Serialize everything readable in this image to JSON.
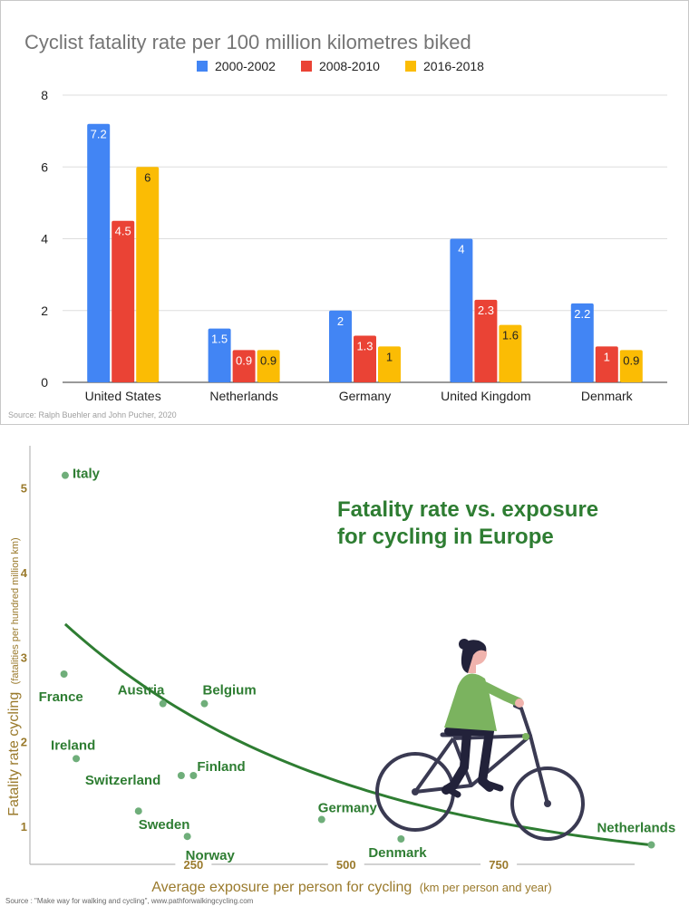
{
  "chart_data": [
    {
      "type": "bar",
      "title": "Cyclist fatality rate per 100 million kilometres biked",
      "categories": [
        "United States",
        "Netherlands",
        "Germany",
        "United Kingdom",
        "Denmark"
      ],
      "series": [
        {
          "name": "2000-2002",
          "color": "#4285F4",
          "label_color": "#ffffff",
          "values": [
            7.2,
            1.5,
            2,
            4,
            2.2
          ],
          "labels": [
            "7.2",
            "1.5",
            "2",
            "4",
            "2.2"
          ]
        },
        {
          "name": "2008-2010",
          "color": "#EA4335",
          "label_color": "#ffffff",
          "values": [
            4.5,
            0.9,
            1.3,
            2.3,
            1
          ],
          "labels": [
            "4.5",
            "0.9",
            "1.3",
            "2.3",
            "1"
          ]
        },
        {
          "name": "2016-2018",
          "color": "#FBBC04",
          "label_color": "#222222",
          "values": [
            6,
            0.9,
            1,
            1.6,
            0.9
          ],
          "labels": [
            "6",
            "0.9",
            "1",
            "1.6",
            "0.9"
          ]
        }
      ],
      "ylim": [
        0,
        8
      ],
      "yticks": [
        0,
        2,
        4,
        6,
        8
      ],
      "ytick_labels": [
        "0",
        "2",
        "4",
        "6",
        "8"
      ],
      "grid": true,
      "legend": "top-center",
      "source": "Source: Ralph Buehler and John Pucher, 2020"
    },
    {
      "type": "scatter",
      "title_lines": [
        "Fatality rate vs. exposure",
        "for cycling in Europe"
      ],
      "xlabel_main": "Average exposure per person for cycling",
      "xlabel_sub": "(km per person and year)",
      "ylabel_main": "Fatality rate cycling",
      "ylabel_sub": "(fatalities per hundred million km)",
      "xlim": [
        0,
        980
      ],
      "ylim": [
        0.55,
        5.5
      ],
      "xticks": [
        250,
        500,
        750
      ],
      "xtick_labels": [
        "250",
        "500",
        "750"
      ],
      "yticks": [
        1,
        2,
        3,
        4,
        5
      ],
      "ytick_labels": [
        "1",
        "2",
        "3",
        "4",
        "5"
      ],
      "points": [
        {
          "label": "Italy",
          "x": 40,
          "y": 5.15
        },
        {
          "label": "France",
          "x": 38,
          "y": 2.8
        },
        {
          "label": "Austria",
          "x": 200,
          "y": 2.45
        },
        {
          "label": "Belgium",
          "x": 268,
          "y": 2.45
        },
        {
          "label": "Ireland",
          "x": 58,
          "y": 1.8
        },
        {
          "label": "Switzerland",
          "x": 230,
          "y": 1.6
        },
        {
          "label": "Finland",
          "x": 250,
          "y": 1.6
        },
        {
          "label": "Sweden",
          "x": 160,
          "y": 1.18
        },
        {
          "label": "Norway",
          "x": 240,
          "y": 0.88
        },
        {
          "label": "Germany",
          "x": 460,
          "y": 1.08
        },
        {
          "label": "Denmark",
          "x": 590,
          "y": 0.85
        },
        {
          "label": "Netherlands",
          "x": 1000,
          "y": 0.78
        }
      ],
      "trend": {
        "a": 3.39,
        "b": 0.0022,
        "c": 0.42,
        "x_from": 40,
        "x_to": 1005
      },
      "accent": "#2e7d32",
      "point_color": "#6fae7a",
      "axis_label_color": "#9a7a2c",
      "source": "Source : \"Make way for walking and cycling\", www.pathforwalkingcycling.com"
    }
  ]
}
